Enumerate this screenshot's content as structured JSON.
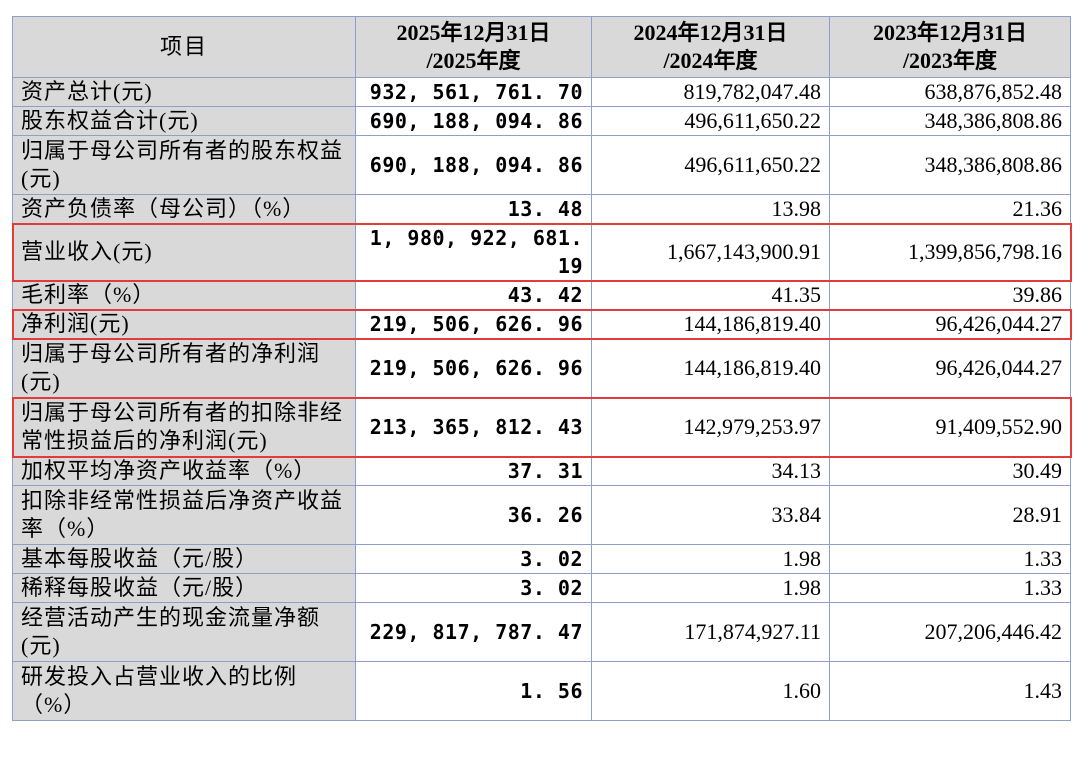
{
  "header": {
    "item": "项目",
    "col2025_line1": "2025年12月31日",
    "col2025_line2": "/2025年度",
    "col2024_line1": "2024年12月31日",
    "col2024_line2": "/2024年度",
    "col2023_line1": "2023年12月31日",
    "col2023_line2": "/2023年度"
  },
  "rows": [
    {
      "label": "资产总计(元)",
      "v2025": "932, 561, 761. 70",
      "v2024": "819,782,047.48",
      "v2023": "638,876,852.48",
      "highlighted": false
    },
    {
      "label": "股东权益合计(元)",
      "v2025": "690, 188, 094. 86",
      "v2024": "496,611,650.22",
      "v2023": "348,386,808.86",
      "highlighted": false
    },
    {
      "label": "归属于母公司所有者的股东权益(元)",
      "v2025": "690, 188, 094. 86",
      "v2024": "496,611,650.22",
      "v2023": "348,386,808.86",
      "highlighted": false
    },
    {
      "label": "资产负债率（母公司）（%）",
      "v2025": "13. 48",
      "v2024": "13.98",
      "v2023": "21.36",
      "highlighted": false
    },
    {
      "label": "营业收入(元)",
      "v2025": "1, 980, 922, 681. 19",
      "v2024": "1,667,143,900.91",
      "v2023": "1,399,856,798.16",
      "highlighted": true
    },
    {
      "label": "毛利率（%）",
      "v2025": "43. 42",
      "v2024": "41.35",
      "v2023": "39.86",
      "highlighted": false
    },
    {
      "label": "净利润(元)",
      "v2025": "219, 506, 626. 96",
      "v2024": "144,186,819.40",
      "v2023": "96,426,044.27",
      "highlighted": true
    },
    {
      "label": "归属于母公司所有者的净利润(元)",
      "v2025": "219, 506, 626. 96",
      "v2024": "144,186,819.40",
      "v2023": "96,426,044.27",
      "highlighted": false
    },
    {
      "label": "归属于母公司所有者的扣除非经常性损益后的净利润(元)",
      "v2025": "213, 365, 812. 43",
      "v2024": "142,979,253.97",
      "v2023": "91,409,552.90",
      "highlighted": true
    },
    {
      "label": "加权平均净资产收益率（%）",
      "v2025": "37. 31",
      "v2024": "34.13",
      "v2023": "30.49",
      "highlighted": false
    },
    {
      "label": "扣除非经常性损益后净资产收益率（%）",
      "v2025": "36. 26",
      "v2024": "33.84",
      "v2023": "28.91",
      "highlighted": false
    },
    {
      "label": "基本每股收益（元/股）",
      "v2025": "3. 02",
      "v2024": "1.98",
      "v2023": "1.33",
      "highlighted": false
    },
    {
      "label": "稀释每股收益（元/股）",
      "v2025": "3. 02",
      "v2024": "1.98",
      "v2023": "1.33",
      "highlighted": false
    },
    {
      "label": "经营活动产生的现金流量净额(元)",
      "v2025": "229, 817, 787. 47",
      "v2024": "171,874,927.11",
      "v2023": "207,206,446.42",
      "highlighted": false
    },
    {
      "label": "研发投入占营业收入的比例（%）",
      "v2025": "1. 56",
      "v2024": "1.60",
      "v2023": "1.43",
      "highlighted": false
    }
  ],
  "colors": {
    "header_bg": "#d9d9d9",
    "label_bg": "#d9d9d9",
    "border": "#8fa0c8",
    "highlight_box": "#e23b3b"
  }
}
